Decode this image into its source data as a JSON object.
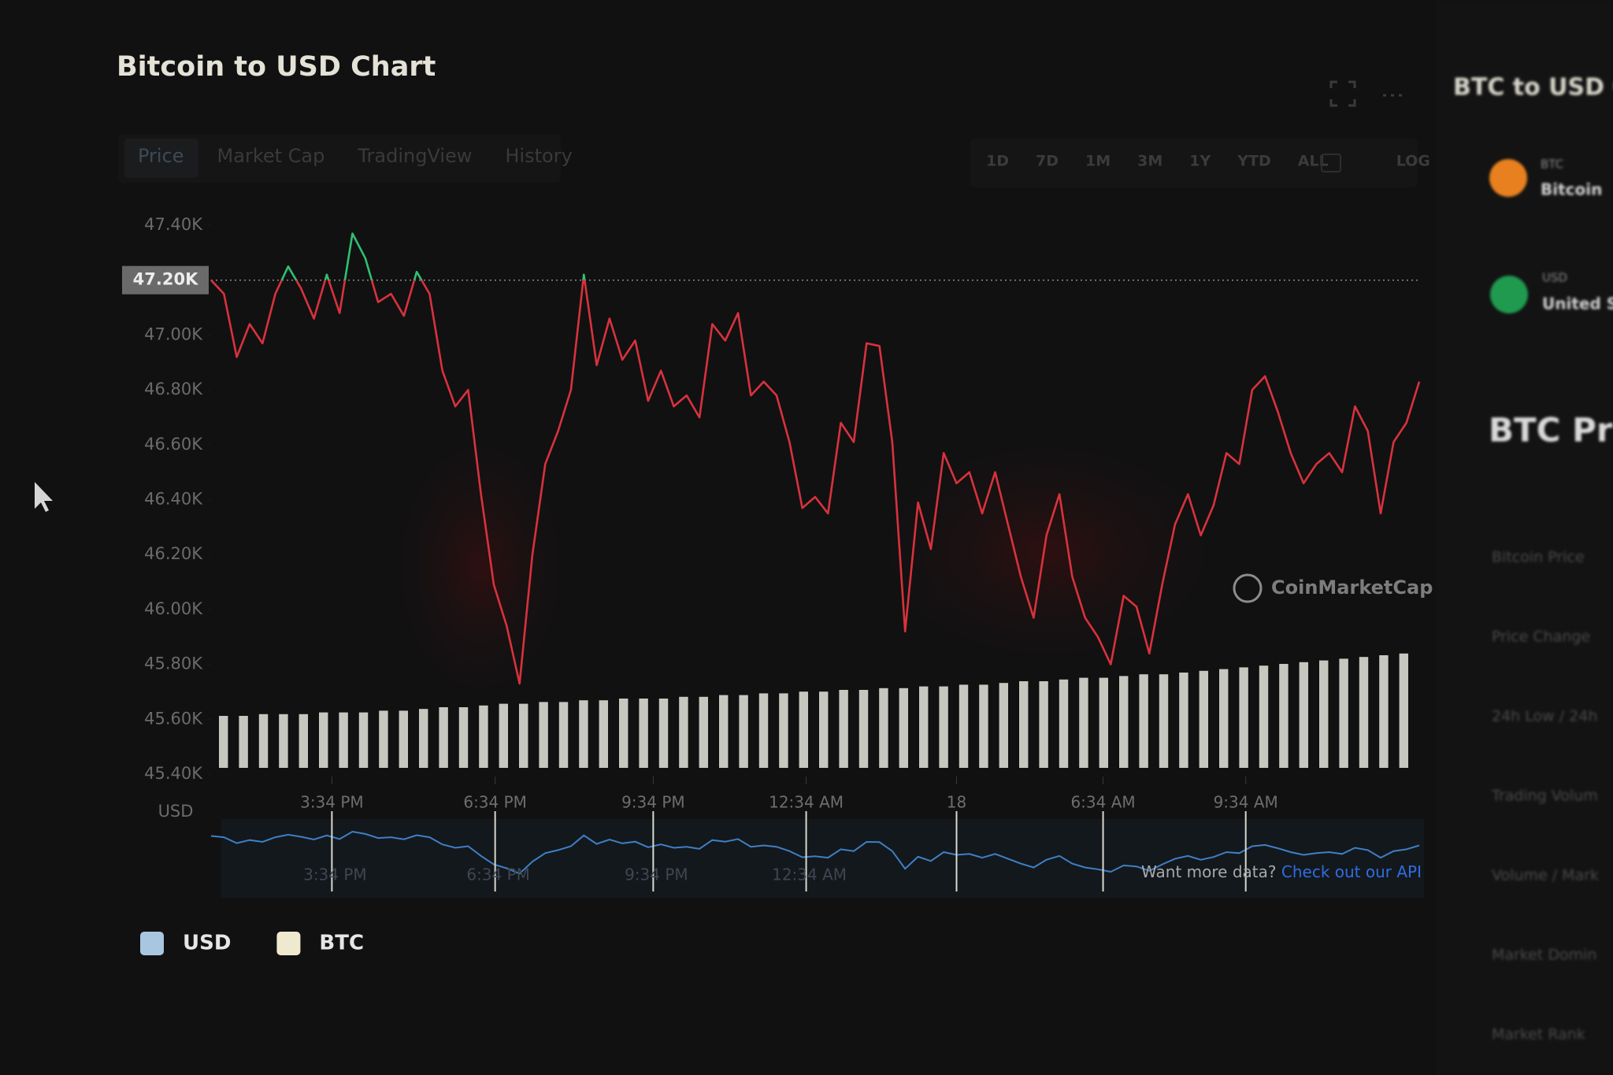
{
  "header": {
    "title": "Bitcoin to USD Chart"
  },
  "tabs": [
    "Price",
    "Market Cap",
    "TradingView",
    "History"
  ],
  "ranges": [
    "1D",
    "7D",
    "1M",
    "3M",
    "1Y",
    "YTD",
    "ALL",
    "LOG"
  ],
  "watermark": "CoinMarketCap",
  "footer": {
    "prompt": "Want more data?",
    "link": "Check out our API"
  },
  "sidebar": {
    "title": "BTC to USD Co",
    "coins": [
      {
        "symbol": "BTC",
        "name": "Bitcoin"
      },
      {
        "symbol": "USD",
        "name": "United St"
      }
    ],
    "heading": "BTC Pric",
    "rows": [
      "Bitcoin Price",
      "Price Change",
      "24h Low / 24h",
      "Trading Volum",
      "Volume / Mark",
      "Market Domin",
      "Market Rank"
    ]
  },
  "chart_data": {
    "type": "line",
    "y_axis_label": "USD",
    "color": "#d8323c",
    "above_color": "#2fbf71",
    "navigator_color": "#3f7fc4",
    "reference_line": {
      "value": 47200,
      "label": "47.20K"
    },
    "values": [
      47200,
      47150,
      46920,
      47040,
      46970,
      47150,
      47250,
      47170,
      47060,
      47220,
      47080,
      47370,
      47280,
      47120,
      47150,
      47070,
      47230,
      47150,
      46870,
      46740,
      46800,
      46420,
      46090,
      45940,
      45730,
      46200,
      46530,
      46650,
      46800,
      47220,
      46890,
      47060,
      46910,
      46980,
      46760,
      46870,
      46740,
      46780,
      46700,
      47040,
      46980,
      47080,
      46780,
      46830,
      46780,
      46610,
      46370,
      46410,
      46350,
      46680,
      46610,
      46970,
      46960,
      46610,
      45920,
      46390,
      46220,
      46570,
      46460,
      46500,
      46350,
      46500,
      46310,
      46120,
      45970,
      46270,
      46420,
      46120,
      45970,
      45900,
      45800,
      46050,
      46010,
      45840,
      46090,
      46310,
      46420,
      46270,
      46380,
      46570,
      46530,
      46800,
      46850,
      46720,
      46570,
      46460,
      46530,
      46570,
      46500,
      46740,
      46650,
      46350,
      46610,
      46680,
      46830
    ],
    "xlim": [
      0,
      94
    ],
    "xticks": [
      {
        "value": 9.4,
        "label": "3:34 PM"
      },
      {
        "value": 22.1,
        "label": "6:34 PM"
      },
      {
        "value": 34.4,
        "label": "9:34 PM"
      },
      {
        "value": 46.3,
        "label": "12:34 AM"
      },
      {
        "value": 58,
        "label": "18"
      },
      {
        "value": 69.4,
        "label": "6:34 AM"
      },
      {
        "value": 80.5,
        "label": "9:34 AM"
      }
    ],
    "ylim": [
      45400,
      47400
    ],
    "yticks": [
      {
        "value": 45400,
        "label": "45.40K"
      },
      {
        "value": 45600,
        "label": "45.60K"
      },
      {
        "value": 45800,
        "label": "45.80K"
      },
      {
        "value": 46000,
        "label": "46.00K"
      },
      {
        "value": 46200,
        "label": "46.20K"
      },
      {
        "value": 46400,
        "label": "46.40K"
      },
      {
        "value": 46600,
        "label": "46.60K"
      },
      {
        "value": 46800,
        "label": "46.80K"
      },
      {
        "value": 47000,
        "label": "47.00K"
      },
      {
        "value": 47200,
        "label": "47.20K"
      },
      {
        "value": 47400,
        "label": "47.40K"
      }
    ],
    "volume": {
      "color": "#e6e9df",
      "y2lim": [
        0,
        100
      ],
      "values": [
        30,
        30,
        31,
        31,
        31,
        32,
        32,
        32,
        33,
        33,
        34,
        35,
        35,
        36,
        37,
        37,
        38,
        38,
        39,
        39,
        40,
        40,
        40,
        41,
        41,
        42,
        42,
        43,
        43,
        44,
        44,
        45,
        45,
        46,
        46,
        47,
        47,
        48,
        48,
        49,
        50,
        50,
        51,
        52,
        52,
        53,
        54,
        54,
        55,
        56,
        57,
        58,
        59,
        60,
        61,
        62,
        63,
        64,
        65,
        66
      ]
    },
    "legend": [
      {
        "label": "USD",
        "color": "#a8c6e0"
      },
      {
        "label": "BTC",
        "color": "#efe9cf"
      }
    ]
  }
}
